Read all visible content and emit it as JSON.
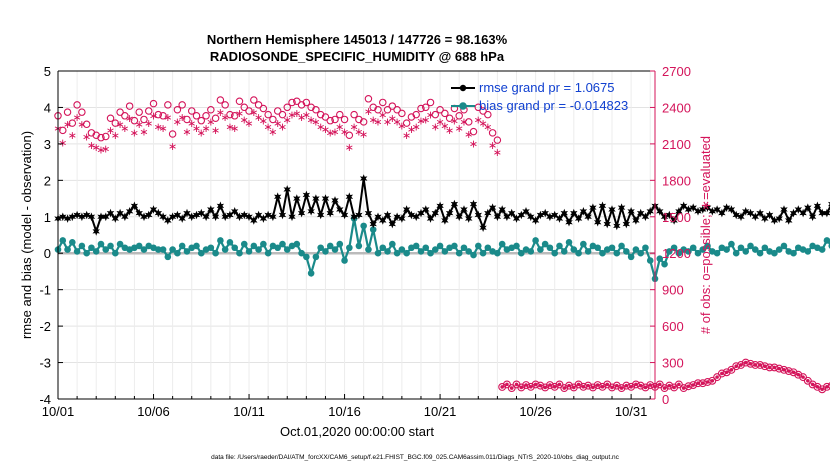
{
  "chart_data": {
    "type": "line",
    "title": "Northern Hemisphere 145013 / 147726 = 98.163%",
    "subtitle": "RADIOSONDE_SPECIFIC_HUMIDITY @ 688 hPa",
    "xlabel": "Oct.01,2020 00:00:00 start",
    "ylabel_left": "rmse and bias (model - observation)",
    "ylabel_right": "# of obs: o=possible; ∗=evaluated",
    "footer": "data file: /Users/raeder/DAI/ATM_forcXX/CAM6_setup/f.e21.FHIST_BGC.f09_025.CAM6assim.011/Diags_NTrS_2020-10/obs_diag_output.nc",
    "x_tick_labels": [
      "10/01",
      "10/06",
      "10/11",
      "10/16",
      "10/21",
      "10/26",
      "10/31"
    ],
    "x_tick_days": [
      1,
      6,
      11,
      16,
      21,
      26,
      31
    ],
    "xlim": [
      1,
      32.25
    ],
    "ylim_left": [
      -4,
      5
    ],
    "ylim_right": [
      0,
      2700
    ],
    "y_ticks_left": [
      "-4",
      "-3",
      "-2",
      "-1",
      "0",
      "1",
      "2",
      "3",
      "4",
      "5"
    ],
    "y_ticks_right": [
      "0",
      "300",
      "600",
      "900",
      "1200",
      "1500",
      "1800",
      "2100",
      "2400",
      "2700"
    ],
    "grid": true,
    "legend_position": "top-right",
    "colors": {
      "rmse": "#000000",
      "bias": "#1a8a8a",
      "obs": "#d4145a",
      "zero_line": "#bbbbbb"
    },
    "series": [
      {
        "name": "rmse grand pr = 1.0675",
        "axis": "left",
        "marker": "star-filled",
        "values": [
          0.95,
          1.0,
          0.95,
          1.0,
          1.05,
          1.0,
          1.05,
          1.0,
          0.6,
          1.0,
          1.0,
          1.1,
          0.95,
          1.1,
          1.0,
          1.15,
          1.3,
          1.1,
          1.0,
          1.05,
          1.2,
          1.1,
          1.0,
          0.9,
          1.0,
          1.05,
          0.95,
          1.1,
          1.0,
          1.05,
          1.1,
          1.0,
          1.2,
          1.0,
          1.3,
          1.0,
          1.05,
          1.15,
          1.0,
          1.05,
          1.0,
          0.9,
          1.05,
          0.95,
          1.05,
          1.0,
          1.55,
          1.05,
          1.75,
          1.0,
          1.5,
          1.1,
          1.6,
          1.15,
          1.5,
          1.05,
          1.5,
          1.1,
          1.45,
          1.2,
          1.05,
          1.55,
          1.0,
          1.05,
          2.05,
          1.1,
          0.8,
          1.0,
          0.9,
          1.05,
          0.8,
          1.0,
          0.95,
          1.2,
          1.05,
          1.0,
          1.1,
          1.2,
          0.95,
          1.1,
          1.3,
          0.9,
          1.1,
          1.35,
          1.0,
          1.2,
          0.95,
          1.35,
          1.05,
          0.7,
          1.1,
          1.25,
          1.0,
          1.2,
          1.0,
          1.1,
          0.95,
          1.05,
          1.15,
          1.0,
          0.9,
          1.05,
          1.1,
          1.0,
          1.05,
          0.95,
          1.1,
          0.85,
          1.1,
          0.95,
          1.15,
          1.0,
          1.25,
          0.85,
          1.3,
          0.8,
          1.2,
          0.75,
          1.25,
          0.8,
          1.15,
          0.9,
          1.1,
          1.0,
          1.15,
          1.3,
          1.15,
          1.0,
          1.05,
          0.9,
          1.15,
          1.3,
          1.2,
          1.25,
          1.15,
          1.2,
          1.25,
          1.15,
          1.2,
          1.1,
          1.25,
          1.2,
          1.05,
          1.0,
          1.15,
          1.1,
          1.0,
          1.1,
          0.95,
          1.05,
          0.9,
          0.95,
          1.2,
          0.9,
          1.1,
          1.2,
          1.1,
          1.25,
          1.0,
          1.3,
          1.1,
          1.1,
          1.35,
          1.05,
          1.3,
          1.45,
          1.0,
          1.2,
          1.05,
          1.1,
          1.0,
          0.75,
          1.1,
          0.9,
          0.95,
          1.1,
          1.05,
          1.0,
          0.95,
          0.85
        ]
      },
      {
        "name": "bias grand pr = -0.014823",
        "axis": "left",
        "marker": "dot",
        "values": [
          0.1,
          0.35,
          0.1,
          0.3,
          0.05,
          0.2,
          0.0,
          0.15,
          0.05,
          0.25,
          0.1,
          0.2,
          0.0,
          0.25,
          0.15,
          0.1,
          0.15,
          0.2,
          0.1,
          0.2,
          0.15,
          0.1,
          0.1,
          -0.1,
          0.1,
          0.0,
          0.2,
          0.05,
          0.15,
          0.2,
          0.0,
          0.1,
          0.15,
          0.0,
          0.35,
          0.1,
          0.3,
          0.15,
          0.0,
          0.25,
          0.05,
          0.2,
          0.1,
          0.25,
          0.0,
          0.2,
          0.15,
          0.25,
          0.1,
          0.2,
          0.25,
          0.0,
          -0.1,
          -0.55,
          -0.1,
          0.15,
          0.05,
          0.2,
          0.1,
          0.25,
          -0.2,
          0.15,
          0.95,
          0.2,
          0.75,
          0.1,
          0.65,
          0.0,
          0.15,
          0.05,
          0.25,
          0.0,
          0.1,
          0.0,
          0.15,
          0.2,
          0.05,
          0.15,
          0.0,
          0.1,
          0.2,
          0.05,
          0.15,
          0.2,
          0.0,
          0.15,
          0.05,
          -0.05,
          0.2,
          0.0,
          0.15,
          0.05,
          0.0,
          0.25,
          0.1,
          0.15,
          0.2,
          0.0,
          0.1,
          0.05,
          0.35,
          0.1,
          0.25,
          0.15,
          0.0,
          0.2,
          0.05,
          0.3,
          0.1,
          0.0,
          0.25,
          0.05,
          0.2,
          0.15,
          0.0,
          0.1,
          0.15,
          0.0,
          0.2,
          0.05,
          -0.1,
          0.1,
          0.0,
          0.15,
          -0.2,
          -0.7,
          -0.15,
          -0.3,
          0.05,
          0.15,
          0.0,
          0.1,
          0.05,
          0.15,
          0.0,
          0.1,
          0.2,
          0.05,
          0.0,
          0.15,
          0.1,
          0.25,
          0.0,
          0.15,
          0.05,
          0.2,
          0.1,
          0.0,
          0.15,
          0.05,
          0.0,
          0.1,
          0.2,
          0.05,
          0.0,
          0.15,
          0.1,
          0.05,
          0.2,
          0.15,
          0.1,
          0.35,
          0.2,
          0.1,
          0.4,
          0.25,
          0.5,
          0.2,
          0.35,
          0.0,
          0.25,
          0.05,
          0.2,
          0.1,
          0.0,
          0.15,
          0.0,
          0.05,
          0.0,
          -0.05
        ]
      },
      {
        "name": "possible",
        "axis": "right",
        "marker": "circle-open",
        "values": [
          2290,
          2170,
          2320,
          2230,
          2380,
          2320,
          2220,
          2150,
          2130,
          2110,
          2120,
          2270,
          2230,
          2320,
          2290,
          2370,
          2250,
          2320,
          2260,
          2330,
          2390,
          2300,
          2290,
          2380,
          2140,
          2340,
          2380,
          2260,
          2330,
          2290,
          2250,
          2290,
          2340,
          2270,
          2420,
          2380,
          2300,
          2290,
          2410,
          2360,
          2330,
          2420,
          2380,
          2350,
          2300,
          2260,
          2330,
          2300,
          2360,
          2400,
          2410,
          2380,
          2400,
          2360,
          2340,
          2300,
          2280,
          2250,
          2260,
          2300,
          2260,
          2130,
          2300,
          2260,
          2240,
          2430,
          2360,
          2340,
          2400,
          2340,
          2370,
          2340,
          2310,
          2230,
          2280,
          2300,
          2350,
          2360,
          2400,
          2300,
          2340,
          2310,
          2270,
          2350,
          2290,
          2340,
          2240,
          2160,
          2360,
          2330,
          2300,
          2150,
          2090,
          99,
          120,
          90,
          120,
          95,
          115,
          100,
          120,
          110,
          95,
          115,
          100,
          120,
          90,
          110,
          95,
          120,
          100,
          110,
          95,
          115,
          100,
          120,
          95,
          110,
          90,
          110,
          100,
          120,
          110,
          95,
          115,
          100,
          120,
          90,
          110,
          95,
          120,
          90,
          105,
          115,
          130,
          130,
          140,
          150,
          180,
          210,
          220,
          240,
          270,
          280,
          300,
          290,
          280,
          280,
          270,
          260,
          260,
          250,
          240,
          230,
          220,
          200,
          180,
          150,
          120,
          100,
          80,
          100,
          110,
          95,
          110,
          90,
          100,
          110,
          95,
          90,
          80,
          70,
          60,
          50
        ]
      },
      {
        "name": "evaluated",
        "axis": "right",
        "marker": "asterisk",
        "values": []
      }
    ]
  }
}
